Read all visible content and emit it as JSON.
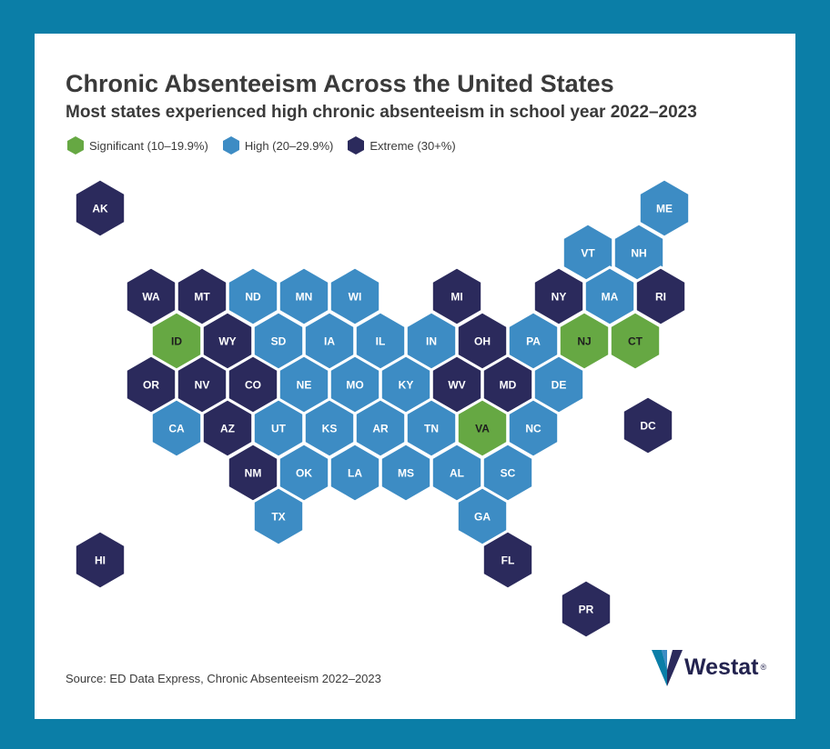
{
  "title": "Chronic Absenteeism Across the United States",
  "subtitle": "Most states experienced high chronic absenteeism in school year 2022–2023",
  "legend": [
    {
      "key": "significant",
      "label": "Significant (10–19.9%)",
      "color": "#66a843"
    },
    {
      "key": "high",
      "label": "High (20–29.9%)",
      "color": "#3d8cc4"
    },
    {
      "key": "extreme",
      "label": "Extreme (30+%)",
      "color": "#2b2a5c"
    }
  ],
  "source": "Source: ED Data Express, Chronic Absenteeism 2022–2023",
  "logo": {
    "text": "Westat",
    "mark": "westat-w-mark",
    "reg": "®"
  },
  "states": [
    {
      "abbr": "AK",
      "level": "extreme"
    },
    {
      "abbr": "ME",
      "level": "high"
    },
    {
      "abbr": "VT",
      "level": "high"
    },
    {
      "abbr": "NH",
      "level": "high"
    },
    {
      "abbr": "WA",
      "level": "extreme"
    },
    {
      "abbr": "MT",
      "level": "extreme"
    },
    {
      "abbr": "ND",
      "level": "high"
    },
    {
      "abbr": "MN",
      "level": "high"
    },
    {
      "abbr": "WI",
      "level": "high"
    },
    {
      "abbr": "MI",
      "level": "extreme"
    },
    {
      "abbr": "NY",
      "level": "extreme"
    },
    {
      "abbr": "MA",
      "level": "high"
    },
    {
      "abbr": "RI",
      "level": "extreme"
    },
    {
      "abbr": "ID",
      "level": "significant"
    },
    {
      "abbr": "WY",
      "level": "extreme"
    },
    {
      "abbr": "SD",
      "level": "high"
    },
    {
      "abbr": "IA",
      "level": "high"
    },
    {
      "abbr": "IL",
      "level": "high"
    },
    {
      "abbr": "IN",
      "level": "high"
    },
    {
      "abbr": "OH",
      "level": "extreme"
    },
    {
      "abbr": "PA",
      "level": "high"
    },
    {
      "abbr": "NJ",
      "level": "significant"
    },
    {
      "abbr": "CT",
      "level": "significant"
    },
    {
      "abbr": "OR",
      "level": "extreme"
    },
    {
      "abbr": "NV",
      "level": "extreme"
    },
    {
      "abbr": "CO",
      "level": "extreme"
    },
    {
      "abbr": "NE",
      "level": "high"
    },
    {
      "abbr": "MO",
      "level": "high"
    },
    {
      "abbr": "KY",
      "level": "high"
    },
    {
      "abbr": "WV",
      "level": "extreme"
    },
    {
      "abbr": "MD",
      "level": "extreme"
    },
    {
      "abbr": "DE",
      "level": "high"
    },
    {
      "abbr": "DC",
      "level": "extreme"
    },
    {
      "abbr": "CA",
      "level": "high"
    },
    {
      "abbr": "AZ",
      "level": "extreme"
    },
    {
      "abbr": "UT",
      "level": "high"
    },
    {
      "abbr": "KS",
      "level": "high"
    },
    {
      "abbr": "AR",
      "level": "high"
    },
    {
      "abbr": "TN",
      "level": "high"
    },
    {
      "abbr": "VA",
      "level": "significant"
    },
    {
      "abbr": "NC",
      "level": "high"
    },
    {
      "abbr": "NM",
      "level": "extreme"
    },
    {
      "abbr": "OK",
      "level": "high"
    },
    {
      "abbr": "LA",
      "level": "high"
    },
    {
      "abbr": "MS",
      "level": "high"
    },
    {
      "abbr": "AL",
      "level": "high"
    },
    {
      "abbr": "SC",
      "level": "high"
    },
    {
      "abbr": "TX",
      "level": "high"
    },
    {
      "abbr": "GA",
      "level": "high"
    },
    {
      "abbr": "HI",
      "level": "extreme"
    },
    {
      "abbr": "FL",
      "level": "extreme"
    },
    {
      "abbr": "PR",
      "level": "extreme"
    }
  ]
}
